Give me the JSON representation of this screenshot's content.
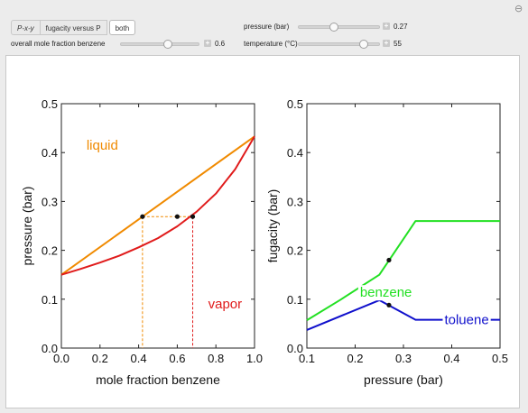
{
  "controls": {
    "plot_buttons": [
      {
        "label": "P-x-y",
        "active": false
      },
      {
        "label": "fugacity versus P",
        "active": false
      },
      {
        "label": "both",
        "active": true
      }
    ],
    "mole_fraction": {
      "label": "overall mole fraction benzene",
      "value": "0.6",
      "fraction": 0.6
    },
    "pressure": {
      "label": "pressure (bar)",
      "value": "0.27",
      "fraction": 0.44
    },
    "temperature": {
      "label": "temperature (°C)",
      "value": "55",
      "fraction": 0.81
    }
  },
  "colors": {
    "liquid": "#f08a00",
    "vapor": "#e01b1b",
    "benzene": "#22e022",
    "toluene": "#1010cc"
  },
  "chart_data": [
    {
      "type": "line",
      "xlabel": "mole fraction benzene",
      "ylabel": "pressure (bar)",
      "xlim": [
        0,
        1
      ],
      "ylim": [
        0,
        0.5
      ],
      "xticks": [
        "0.0",
        "0.2",
        "0.4",
        "0.6",
        "0.8",
        "1.0"
      ],
      "yticks": [
        "0.0",
        "0.1",
        "0.2",
        "0.3",
        "0.4",
        "0.5"
      ],
      "series": [
        {
          "name": "liquid",
          "color": "#f08a00",
          "x": [
            0,
            1
          ],
          "y": [
            0.15,
            0.433
          ]
        },
        {
          "name": "vapor",
          "color": "#e01b1b",
          "x": [
            0,
            0.1,
            0.2,
            0.3,
            0.4,
            0.5,
            0.6,
            0.7,
            0.8,
            0.9,
            1.0
          ],
          "y": [
            0.15,
            0.162,
            0.175,
            0.189,
            0.206,
            0.225,
            0.249,
            0.279,
            0.316,
            0.366,
            0.433
          ]
        }
      ],
      "points": [
        {
          "x": 0.42,
          "y": 0.269
        },
        {
          "x": 0.6,
          "y": 0.269
        },
        {
          "x": 0.68,
          "y": 0.269
        }
      ],
      "dashed_guides": [
        {
          "color": "#f08a00",
          "x": 0.42
        },
        {
          "color": "#e01b1b",
          "x": 0.68
        }
      ],
      "annotations": [
        {
          "text": "liquid",
          "color": "#f08a00",
          "x": 0.13,
          "y": 0.415
        },
        {
          "text": "vapor",
          "color": "#e01b1b",
          "x": 0.76,
          "y": 0.09
        }
      ]
    },
    {
      "type": "line",
      "xlabel": "pressure (bar)",
      "ylabel": "fugacity (bar)",
      "xlim": [
        0.1,
        0.5
      ],
      "ylim": [
        0,
        0.5
      ],
      "xticks": [
        "0.1",
        "0.2",
        "0.3",
        "0.4",
        "0.5"
      ],
      "yticks": [
        "0.0",
        "0.1",
        "0.2",
        "0.3",
        "0.4",
        "0.5"
      ],
      "series": [
        {
          "name": "benzene",
          "color": "#22e022",
          "x": [
            0.1,
            0.17,
            0.17,
            0.25,
            0.25,
            0.325,
            0.5
          ],
          "y": [
            0.057,
            0.099,
            0.099,
            0.15,
            0.15,
            0.26,
            0.26
          ]
        },
        {
          "name": "toluene",
          "color": "#1010cc",
          "x": [
            0.1,
            0.25,
            0.325,
            0.5
          ],
          "y": [
            0.037,
            0.098,
            0.058,
            0.058
          ]
        }
      ],
      "points": [
        {
          "x": 0.27,
          "y": 0.18
        },
        {
          "x": 0.27,
          "y": 0.088
        }
      ],
      "annotations": [
        {
          "text": "benzene",
          "color": "#22e022",
          "x": 0.21,
          "y": 0.114
        },
        {
          "text": "toluene",
          "color": "#1010cc",
          "x": 0.385,
          "y": 0.058
        }
      ]
    }
  ]
}
